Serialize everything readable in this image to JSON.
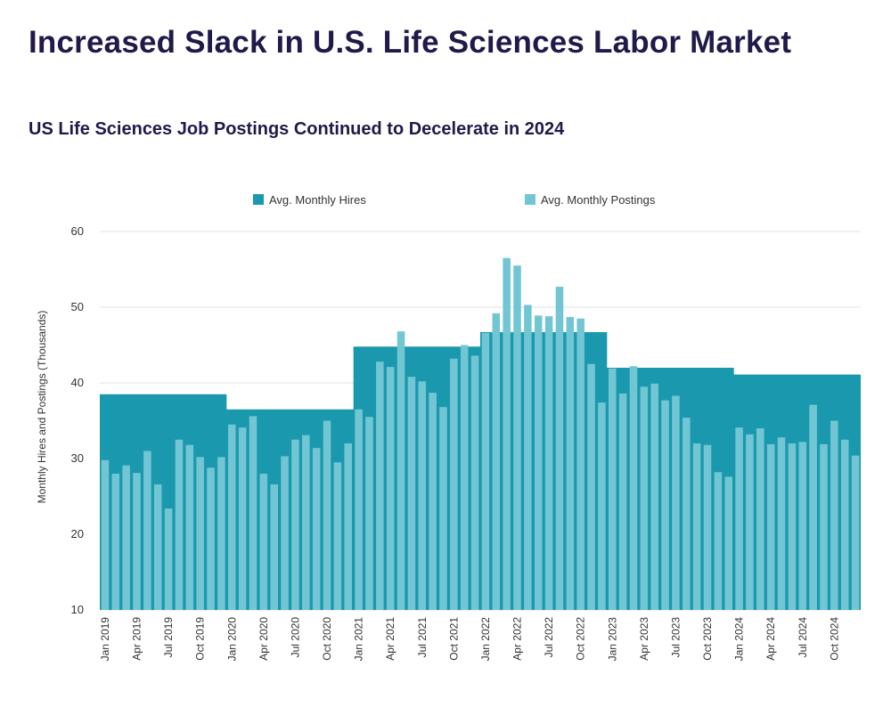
{
  "header": {
    "title": "Increased Slack in U.S. Life Sciences Labor Market",
    "subtitle": "US Life Sciences Job Postings Continued to Decelerate in 2024"
  },
  "colors": {
    "hires": "#1a98ae",
    "postings": "#72c6d4",
    "title": "#1f1a4a",
    "grid": "#e2e2e2",
    "axis_text": "#333333"
  },
  "chart_data": {
    "type": "bar",
    "title": "US Life Sciences Job Postings Continued to Decelerate in 2024",
    "xlabel": "",
    "ylabel": "Monthly Hires and Postings (Thousands)",
    "ylim": [
      10,
      60
    ],
    "yticks": [
      10,
      20,
      30,
      40,
      50,
      60
    ],
    "grid": true,
    "legend_position": "top-center",
    "tick_labels": [
      "Jan 2019",
      "Apr 2019",
      "Jul 2019",
      "Oct 2019",
      "Jan 2020",
      "Apr 2020",
      "Jul 2020",
      "Oct 2020",
      "Jan 2021",
      "Apr 2021",
      "Jul 2021",
      "Oct 2021",
      "Jan 2022",
      "Apr 2022",
      "Jul 2022",
      "Oct 2022",
      "Jan 2023",
      "Apr 2023",
      "Jul 2023",
      "Oct 2023",
      "Jan 2024",
      "Apr 2024",
      "Jul 2024",
      "Oct 2024"
    ],
    "categories": [
      "Jan 2019",
      "Feb 2019",
      "Mar 2019",
      "Apr 2019",
      "May 2019",
      "Jun 2019",
      "Jul 2019",
      "Aug 2019",
      "Sep 2019",
      "Oct 2019",
      "Nov 2019",
      "Dec 2019",
      "Jan 2020",
      "Feb 2020",
      "Mar 2020",
      "Apr 2020",
      "May 2020",
      "Jun 2020",
      "Jul 2020",
      "Aug 2020",
      "Sep 2020",
      "Oct 2020",
      "Nov 2020",
      "Dec 2020",
      "Jan 2021",
      "Feb 2021",
      "Mar 2021",
      "Apr 2021",
      "May 2021",
      "Jun 2021",
      "Jul 2021",
      "Aug 2021",
      "Sep 2021",
      "Oct 2021",
      "Nov 2021",
      "Dec 2021",
      "Jan 2022",
      "Feb 2022",
      "Mar 2022",
      "Apr 2022",
      "May 2022",
      "Jun 2022",
      "Jul 2022",
      "Aug 2022",
      "Sep 2022",
      "Oct 2022",
      "Nov 2022",
      "Dec 2022",
      "Jan 2023",
      "Feb 2023",
      "Mar 2023",
      "Apr 2023",
      "May 2023",
      "Jun 2023",
      "Jul 2023",
      "Aug 2023",
      "Sep 2023",
      "Oct 2023",
      "Nov 2023",
      "Dec 2023",
      "Jan 2024",
      "Feb 2024",
      "Mar 2024",
      "Apr 2024",
      "May 2024",
      "Jun 2024",
      "Jul 2024",
      "Aug 2024",
      "Sep 2024",
      "Oct 2024",
      "Nov 2024",
      "Dec 2024"
    ],
    "series": [
      {
        "name": "Avg. Monthly Hires",
        "type": "area",
        "values": [
          38.5,
          38.5,
          38.5,
          38.5,
          38.5,
          38.5,
          38.5,
          38.5,
          38.5,
          38.5,
          38.5,
          38.5,
          36.5,
          36.5,
          36.5,
          36.5,
          36.5,
          36.5,
          36.5,
          36.5,
          36.5,
          36.5,
          36.5,
          36.5,
          44.8,
          44.8,
          44.8,
          44.8,
          44.8,
          44.8,
          44.8,
          44.8,
          44.8,
          44.8,
          44.8,
          44.8,
          46.7,
          46.7,
          46.7,
          46.7,
          46.7,
          46.7,
          46.7,
          46.7,
          46.7,
          46.7,
          46.7,
          46.7,
          42.0,
          42.0,
          42.0,
          42.0,
          42.0,
          42.0,
          42.0,
          42.0,
          42.0,
          42.0,
          42.0,
          42.0,
          41.1,
          41.1,
          41.1,
          41.1,
          41.1,
          41.1,
          41.1,
          41.1,
          41.1,
          41.1,
          41.1,
          41.1
        ]
      },
      {
        "name": "Avg. Monthly Postings",
        "type": "bar",
        "values": [
          29.8,
          28.0,
          29.1,
          28.1,
          31.0,
          26.6,
          23.4,
          32.5,
          31.8,
          30.2,
          28.8,
          30.2,
          34.5,
          34.1,
          35.6,
          28.0,
          26.6,
          30.3,
          32.5,
          33.1,
          31.4,
          35.0,
          29.5,
          32.0,
          36.5,
          35.5,
          42.8,
          42.1,
          46.8,
          40.8,
          40.2,
          38.7,
          36.8,
          43.2,
          45.0,
          43.6,
          46.6,
          49.2,
          56.5,
          55.5,
          50.3,
          48.9,
          48.8,
          52.7,
          48.7,
          48.5,
          42.5,
          37.4,
          41.9,
          38.6,
          42.2,
          39.5,
          39.9,
          37.7,
          38.3,
          35.4,
          32.0,
          31.8,
          28.2,
          27.6,
          34.1,
          33.2,
          34.0,
          31.9,
          32.8,
          32.0,
          32.2,
          37.1,
          31.9,
          35.0,
          32.5,
          30.4
        ]
      }
    ]
  }
}
